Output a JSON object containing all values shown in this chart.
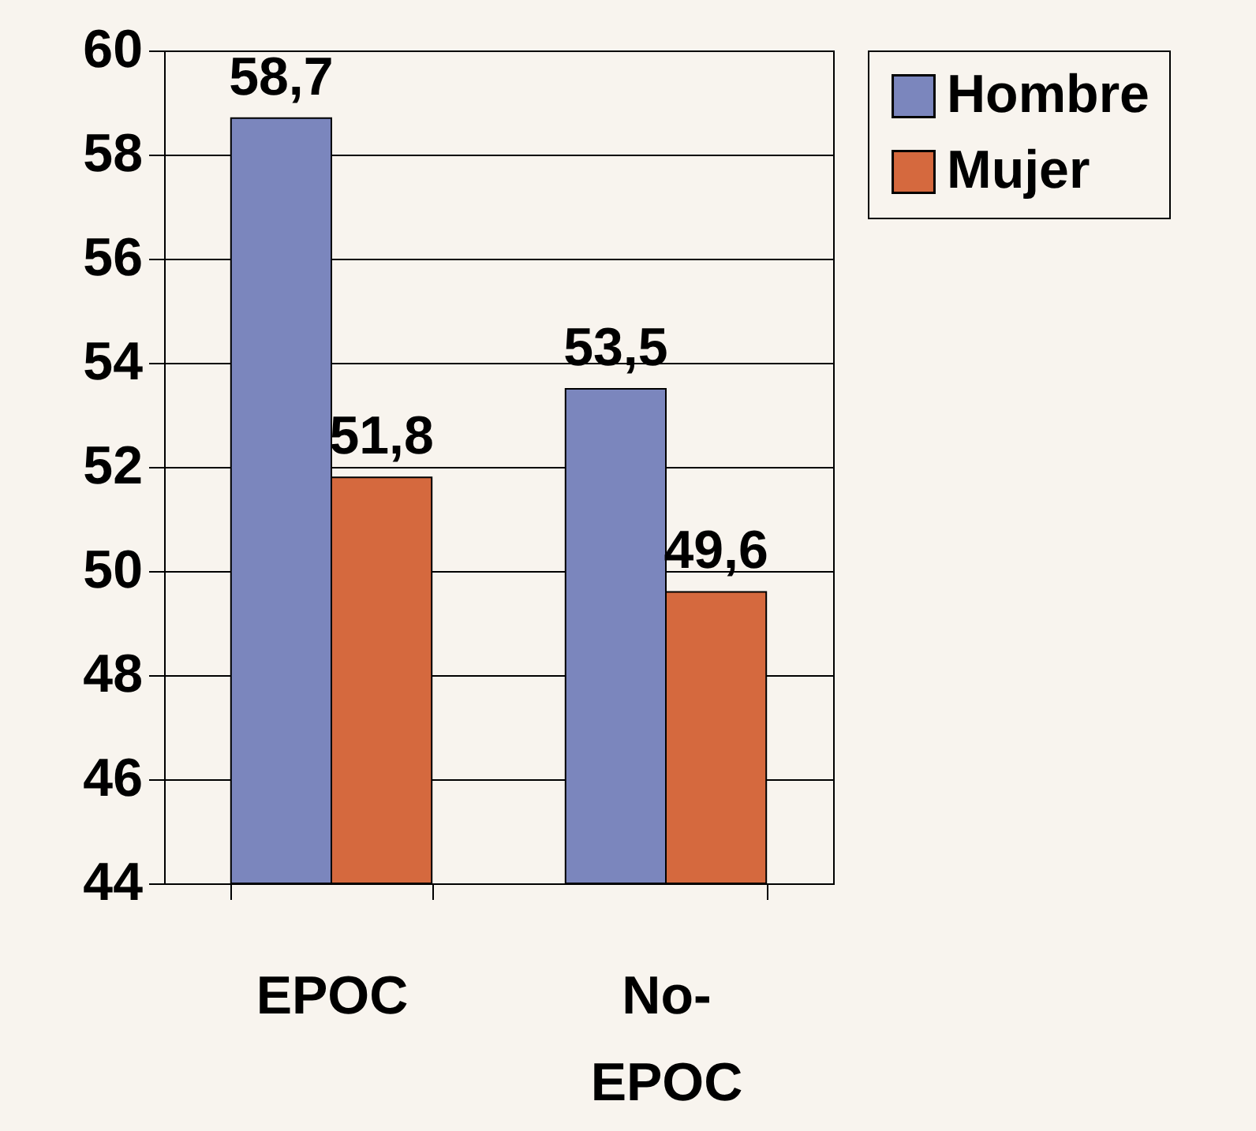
{
  "chart_data": {
    "type": "bar",
    "categories": [
      "EPOC",
      "No-EPOC"
    ],
    "series": [
      {
        "name": "Hombre",
        "color": "#7b86bd",
        "values": [
          58.7,
          53.5
        ],
        "value_labels": [
          "58,7",
          "53,5"
        ]
      },
      {
        "name": "Mujer",
        "color": "#d5693e",
        "values": [
          51.8,
          49.6
        ],
        "value_labels": [
          "51,8",
          "49,6"
        ]
      }
    ],
    "ylim": [
      44,
      60
    ],
    "yticks": [
      44,
      46,
      48,
      50,
      52,
      54,
      56,
      58,
      60
    ],
    "grid": "y",
    "legend": "right"
  }
}
